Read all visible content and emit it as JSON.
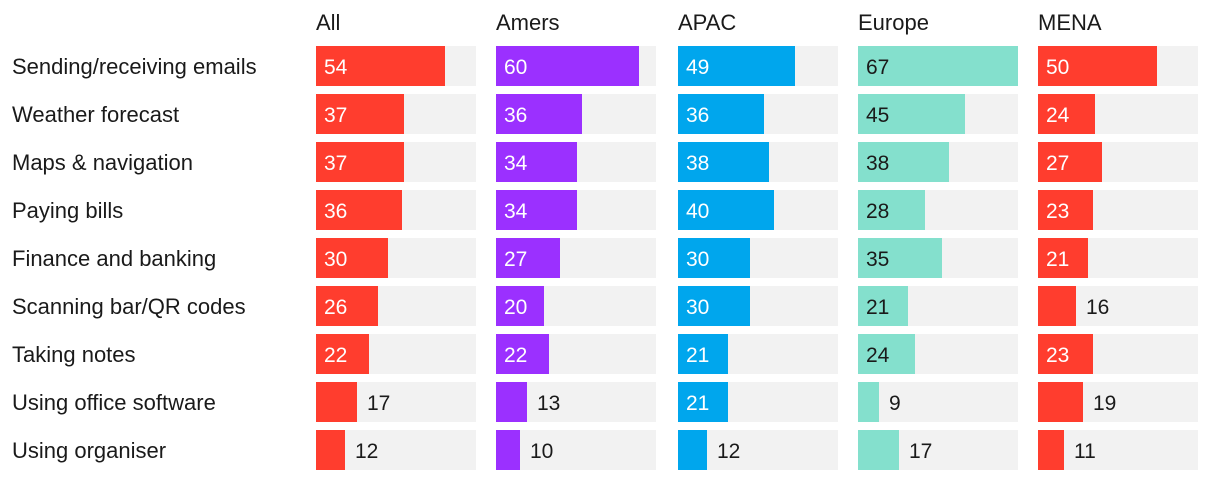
{
  "chart_data": {
    "type": "bar",
    "title": "",
    "xlabel": "",
    "ylabel": "",
    "xlim": [
      0,
      67
    ],
    "categories": [
      "Sending/receiving emails",
      "Weather forecast",
      "Maps & navigation",
      "Paying bills",
      "Finance and banking",
      "Scanning bar/QR codes",
      "Taking notes",
      "Using office software",
      "Using organiser"
    ],
    "series": [
      {
        "name": "All",
        "color": "#ff3d2e",
        "values": [
          54,
          37,
          37,
          36,
          30,
          26,
          22,
          17,
          12
        ]
      },
      {
        "name": "Amers",
        "color": "#9b30ff",
        "values": [
          60,
          36,
          34,
          34,
          27,
          20,
          22,
          13,
          10
        ]
      },
      {
        "name": "APAC",
        "color": "#00a6ed",
        "values": [
          49,
          36,
          38,
          40,
          30,
          30,
          21,
          21,
          12
        ]
      },
      {
        "name": "Europe",
        "color": "#84e0cd",
        "values": [
          67,
          45,
          38,
          28,
          35,
          21,
          24,
          9,
          17
        ]
      },
      {
        "name": "MENA",
        "color": "#ff3d2e",
        "values": [
          50,
          24,
          27,
          23,
          21,
          16,
          23,
          19,
          11
        ]
      }
    ],
    "track_color": "#f2f2f2",
    "value_label_inside_color_light": "#ffffff",
    "value_label_inside_color_dark": "#1a1a1a",
    "value_label_outside_color": "#1a1a1a"
  }
}
